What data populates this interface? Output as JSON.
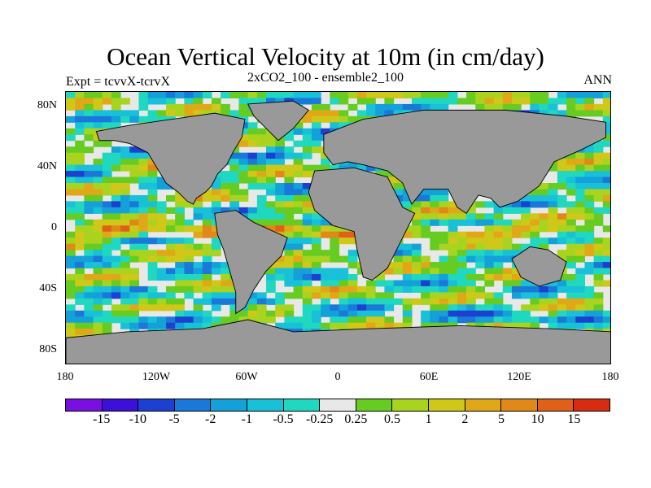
{
  "title": "Ocean Vertical Velocity at 10m (in cm/day)",
  "subtitle": "2xCO2_100 - ensemble2_100",
  "experiment": "Expt = tcvvX-tcrvX",
  "season": "ANN",
  "map": {
    "projection": "cylindrical equidistant",
    "lon_range": [
      -180,
      180
    ],
    "lat_range": [
      -90,
      90
    ],
    "land_color": "#999999",
    "y_ticks": [
      "80N",
      "40N",
      "0",
      "40S",
      "80S"
    ],
    "x_ticks": [
      "180",
      "120W",
      "60W",
      "0",
      "60E",
      "120E",
      "180"
    ]
  },
  "colorbar": {
    "colors": [
      "#7a10e0",
      "#3c10d8",
      "#1c40d0",
      "#1a78d8",
      "#14a0d8",
      "#18c0d8",
      "#20d8c0",
      "#e8e8e8",
      "#66cc22",
      "#a8d420",
      "#d0c818",
      "#e0a818",
      "#e08818",
      "#e06018",
      "#d82c10"
    ],
    "labels": [
      "-15",
      "-10",
      "-5",
      "-2",
      "-1",
      "-0.5",
      "-0.25",
      "0.25",
      "0.5",
      "1",
      "2",
      "5",
      "10",
      "15"
    ]
  }
}
